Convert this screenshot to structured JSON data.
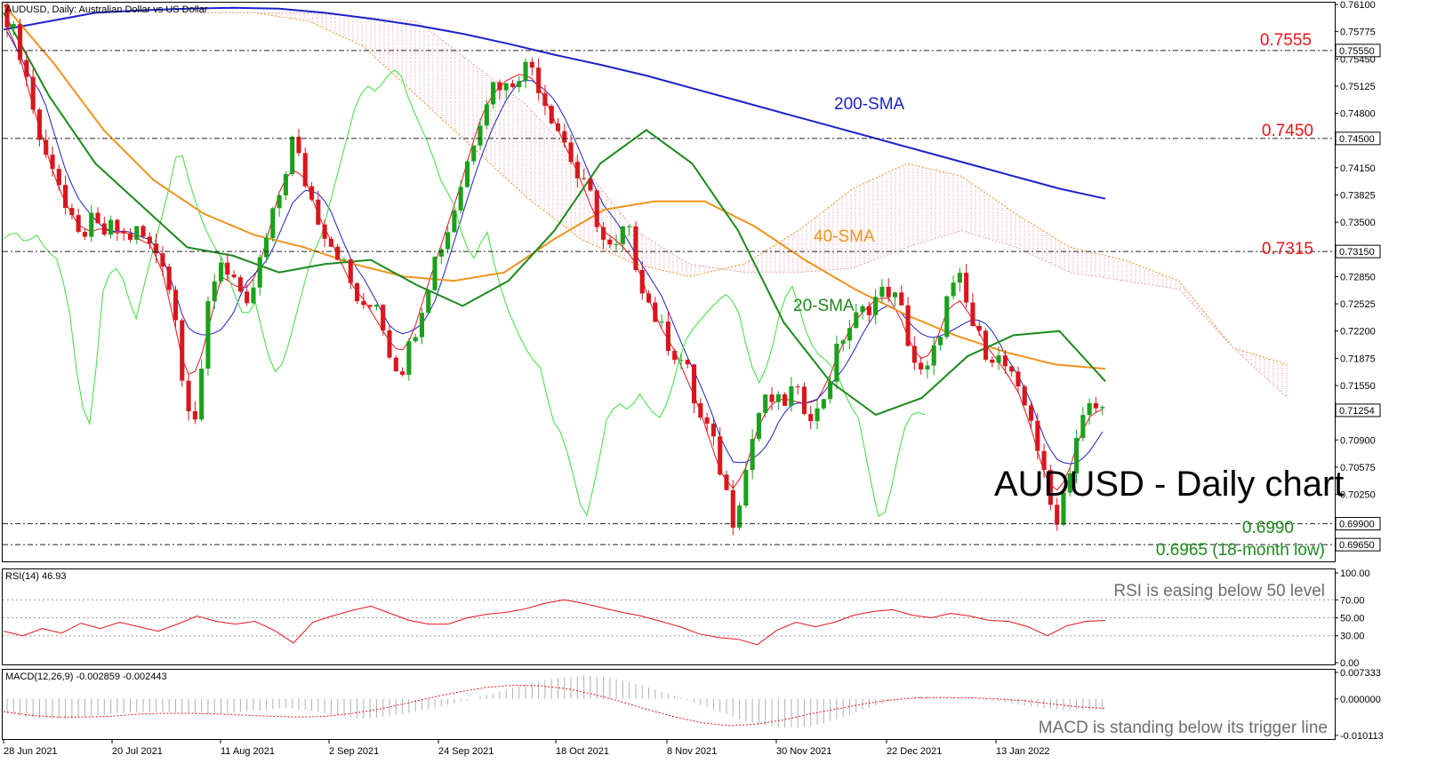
{
  "chart_header": "AUDUSD, Daily:  Australian Dollar vs US Dollar",
  "chart_big_title": "AUDUSD - Daily chart",
  "chart_data": [
    {
      "type": "candlestick",
      "title": "AUDUSD, Daily:  Australian Dollar vs US Dollar",
      "ylim": [
        0.6945,
        0.761
      ],
      "y_ticks": [
        "0.76100",
        "0.75775",
        "0.75450",
        "0.75125",
        "0.74800",
        "0.74150",
        "0.73825",
        "0.73500",
        "0.72850",
        "0.72525",
        "0.72200",
        "0.71875",
        "0.71550",
        "0.70900",
        "0.70575",
        "0.70250"
      ],
      "highlighted_prices": [
        {
          "label": "0.75550",
          "value": 0.7555
        },
        {
          "label": "0.74500",
          "value": 0.745
        },
        {
          "label": "0.73150",
          "value": 0.7315
        },
        {
          "label": "0.71254",
          "value": 0.71254
        },
        {
          "label": "0.69900",
          "value": 0.699
        },
        {
          "label": "0.69650",
          "value": 0.6965
        }
      ],
      "horizontal_levels": [
        {
          "label": "0.7555",
          "value": 0.7555,
          "color": "#e8141b"
        },
        {
          "label": "0.7450",
          "value": 0.745,
          "color": "#e8141b"
        },
        {
          "label": "0.7315",
          "value": 0.7315,
          "color": "#e8141b"
        },
        {
          "label": "0.6990",
          "value": 0.699,
          "color": "#1c8a1c"
        },
        {
          "label": "0.6965 (18-month low)",
          "value": 0.6965,
          "color": "#1c8a1c"
        }
      ],
      "x_labels": [
        "28 Jun 2021",
        "20 Jul 2021",
        "11 Aug 2021",
        "2 Sep 2021",
        "24 Sep 2021",
        "18 Oct 2021",
        "8 Nov 2021",
        "30 Nov 2021",
        "22 Dec 2021",
        "13 Jan 2022"
      ],
      "close_path": [
        0.7595,
        0.756,
        0.75,
        0.743,
        0.742,
        0.736,
        0.733,
        0.735,
        0.7335,
        0.7345,
        0.733,
        0.734,
        0.732,
        0.731,
        0.725,
        0.714,
        0.711,
        0.727,
        0.7305,
        0.7285,
        0.7235,
        0.729,
        0.734,
        0.739,
        0.745,
        0.74,
        0.736,
        0.733,
        0.731,
        0.727,
        0.724,
        0.726,
        0.72,
        0.717,
        0.721,
        0.726,
        0.731,
        0.734,
        0.739,
        0.744,
        0.749,
        0.752,
        0.751,
        0.753,
        0.754,
        0.75,
        0.747,
        0.744,
        0.74,
        0.738,
        0.733,
        0.731,
        0.735,
        0.729,
        0.725,
        0.722,
        0.7195,
        0.718,
        0.712,
        0.71,
        0.705,
        0.6995,
        0.705,
        0.712,
        0.714,
        0.713,
        0.715,
        0.713,
        0.712,
        0.716,
        0.721,
        0.723,
        0.7245,
        0.726,
        0.727,
        0.725,
        0.719,
        0.716,
        0.72,
        0.726,
        0.728,
        0.723,
        0.72,
        0.719,
        0.7175,
        0.714,
        0.712,
        0.705,
        0.699,
        0.704,
        0.7105,
        0.713,
        0.7125
      ],
      "series": [
        {
          "name": "200-SMA",
          "color": "#1b22c9",
          "values": [
            0.758,
            0.759,
            0.76,
            0.7603,
            0.7605,
            0.7606,
            0.7605,
            0.76,
            0.7593,
            0.7585,
            0.7575,
            0.7563,
            0.755,
            0.7538,
            0.7525,
            0.751,
            0.7495,
            0.748,
            0.7465,
            0.745,
            0.7435,
            0.742,
            0.7405,
            0.739,
            0.7378
          ]
        },
        {
          "name": "40-SMA",
          "color": "#f0931d",
          "values": [
            0.761,
            0.754,
            0.746,
            0.74,
            0.736,
            0.7335,
            0.732,
            0.73,
            0.7285,
            0.728,
            0.729,
            0.733,
            0.7365,
            0.7375,
            0.7375,
            0.7345,
            0.7305,
            0.727,
            0.724,
            0.7215,
            0.7195,
            0.718,
            0.7175
          ]
        },
        {
          "name": "20-SMA",
          "color": "#1c8a1c",
          "values": [
            0.76,
            0.75,
            0.742,
            0.737,
            0.732,
            0.731,
            0.729,
            0.73,
            0.7305,
            0.7275,
            0.725,
            0.728,
            0.734,
            0.742,
            0.746,
            0.742,
            0.734,
            0.723,
            0.716,
            0.712,
            0.714,
            0.719,
            0.7215,
            0.722,
            0.716
          ]
        }
      ],
      "ichimoku": {
        "cloud_color": "#f0931d",
        "conversion_color": "#e8141b",
        "base_color": "#1b22c9",
        "lagging_color": "#3be03b"
      }
    },
    {
      "type": "line",
      "title": "RSI(14) 46.93",
      "ylim": [
        0,
        100
      ],
      "y_ticks": [
        "100.00",
        "70.00",
        "50.00",
        "30.00",
        "0.00"
      ],
      "levels": [
        70,
        50,
        30
      ],
      "series": [
        {
          "color": "#e8141b",
          "values": [
            35,
            30,
            38,
            33,
            44,
            38,
            45,
            40,
            35,
            43,
            52,
            46,
            43,
            46,
            36,
            22,
            45,
            52,
            58,
            63,
            55,
            47,
            43,
            43,
            50,
            54,
            56,
            60,
            66,
            70,
            66,
            61,
            56,
            52,
            46,
            40,
            32,
            28,
            26,
            20,
            36,
            45,
            40,
            45,
            53,
            57,
            59,
            53,
            50,
            55,
            52,
            47,
            46,
            40,
            30,
            41,
            46,
            47
          ]
        }
      ]
    },
    {
      "type": "bar",
      "title": "MACD(12,26,9) -0.002859 -0.002443",
      "ylim": [
        -0.01011,
        0.007333
      ],
      "y_ticks": [
        "0.007333",
        "0.000000",
        "-0.010113"
      ],
      "histogram": [
        -0.004,
        -0.005,
        -0.0055,
        -0.0055,
        -0.005,
        -0.0042,
        -0.0038,
        -0.0035,
        -0.0035,
        -0.0038,
        -0.0042,
        -0.004,
        -0.0035,
        -0.003,
        -0.0025,
        -0.003,
        -0.004,
        -0.005,
        -0.0055,
        -0.0048,
        -0.004,
        -0.003,
        -0.0018,
        -0.0005,
        0.001,
        0.0025,
        0.004,
        0.0052,
        0.006,
        0.0065,
        0.006,
        0.005,
        0.0035,
        0.0018,
        0.0,
        -0.002,
        -0.004,
        -0.006,
        -0.0072,
        -0.008,
        -0.0078,
        -0.0068,
        -0.005,
        -0.003,
        -0.0012,
        0.0003,
        0.0008,
        0.0006,
        0.0002,
        -0.0003,
        -0.0008,
        -0.0018,
        -0.0025,
        -0.003,
        -0.003,
        -0.0029
      ],
      "series": [
        {
          "name": "signal",
          "color": "#e8141b",
          "values": [
            -0.0035,
            -0.0045,
            -0.005,
            -0.005,
            -0.0048,
            -0.0042,
            -0.004,
            -0.004,
            -0.0042,
            -0.0045,
            -0.0048,
            -0.005,
            -0.0048,
            -0.004,
            -0.0028,
            -0.0012,
            0.0005,
            0.002,
            0.0032,
            0.0038,
            0.0036,
            0.0028,
            0.0012,
            -0.0008,
            -0.003,
            -0.005,
            -0.0066,
            -0.0074,
            -0.007,
            -0.0058,
            -0.0042,
            -0.0028,
            -0.0014,
            -0.0003,
            0.0003,
            0.0004,
            0.0003,
            0.0,
            -0.0005,
            -0.0014,
            -0.0022,
            -0.0026
          ]
        }
      ]
    }
  ],
  "annotations": {
    "lvl_7555": "0.7555",
    "lvl_7450": "0.7450",
    "lvl_7315": "0.7315",
    "sma200": "200-SMA",
    "sma40": "40-SMA",
    "sma20": "20-SMA",
    "lvl_6990": "0.6990",
    "lvl_6965": "0.6965 (18-month low)",
    "rsi_note": "RSI is easing below 50 level",
    "macd_note": "MACD is standing below its trigger line"
  }
}
